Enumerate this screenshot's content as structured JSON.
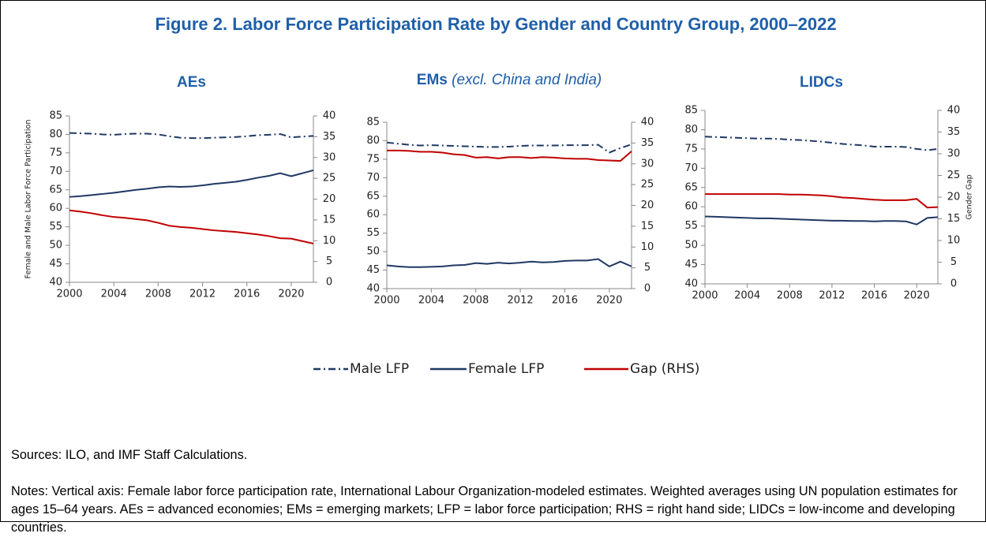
{
  "figure_title": "Figure 2. Labor Force Participation Rate by Gender and Country Group, 2000–2022",
  "chart_data": [
    {
      "type": "line",
      "title": "AEs",
      "ylabel": "Female and Male Labor Force Participation",
      "x": [
        2000,
        2001,
        2002,
        2003,
        2004,
        2005,
        2006,
        2007,
        2008,
        2009,
        2010,
        2011,
        2012,
        2013,
        2014,
        2015,
        2016,
        2017,
        2018,
        2019,
        2020,
        2021,
        2022
      ],
      "xlim": [
        2000,
        2022
      ],
      "xticks": [
        2000,
        2004,
        2008,
        2012,
        2016,
        2020
      ],
      "ylim": [
        40,
        85
      ],
      "yticks": [
        40,
        45,
        50,
        55,
        60,
        65,
        70,
        75,
        80,
        85
      ],
      "y2lim": [
        0,
        40
      ],
      "y2ticks": [
        0,
        5,
        10,
        15,
        20,
        25,
        30,
        35,
        40
      ],
      "series": [
        {
          "name": "Male LFP",
          "color": "#1f3864",
          "style": "dashdot",
          "values": [
            80.4,
            80.3,
            80.2,
            80.0,
            79.9,
            80.1,
            80.2,
            80.2,
            80.0,
            79.5,
            79.1,
            79.0,
            79.0,
            79.1,
            79.2,
            79.3,
            79.5,
            79.8,
            79.9,
            80.1,
            79.2,
            79.4,
            79.6
          ]
        },
        {
          "name": "Female LFP",
          "color": "#1f3864",
          "style": "solid",
          "values": [
            63.1,
            63.3,
            63.6,
            63.9,
            64.2,
            64.6,
            65.0,
            65.3,
            65.7,
            65.9,
            65.8,
            65.9,
            66.2,
            66.6,
            66.9,
            67.2,
            67.7,
            68.3,
            68.8,
            69.5,
            68.7,
            69.5,
            70.3
          ]
        },
        {
          "name": "Gap (RHS)",
          "color": "#c00000",
          "style": "solid",
          "axis": "y2",
          "values": [
            17.3,
            17.0,
            16.6,
            16.1,
            15.7,
            15.5,
            15.2,
            14.9,
            14.3,
            13.6,
            13.3,
            13.1,
            12.8,
            12.5,
            12.3,
            12.1,
            11.8,
            11.5,
            11.1,
            10.6,
            10.5,
            9.9,
            9.3
          ]
        }
      ]
    },
    {
      "type": "line",
      "title": "EMs",
      "subtitle": "(excl. China and India)",
      "x": [
        2000,
        2001,
        2002,
        2003,
        2004,
        2005,
        2006,
        2007,
        2008,
        2009,
        2010,
        2011,
        2012,
        2013,
        2014,
        2015,
        2016,
        2017,
        2018,
        2019,
        2020,
        2021,
        2022
      ],
      "xlim": [
        2000,
        2022
      ],
      "xticks": [
        2000,
        2004,
        2008,
        2012,
        2016,
        2020
      ],
      "ylim": [
        40,
        85
      ],
      "yticks": [
        40,
        45,
        50,
        55,
        60,
        65,
        70,
        75,
        80,
        85
      ],
      "y2lim": [
        0,
        40
      ],
      "y2ticks": [
        0,
        5,
        10,
        15,
        20,
        25,
        30,
        35,
        40
      ],
      "series": [
        {
          "color": "#1f3864",
          "style": "dashdot",
          "values": [
            79.5,
            79.2,
            78.9,
            78.7,
            78.8,
            78.7,
            78.6,
            78.5,
            78.4,
            78.3,
            78.3,
            78.4,
            78.6,
            78.7,
            78.7,
            78.7,
            78.8,
            78.8,
            78.8,
            78.9,
            76.8,
            78.0,
            79.0
          ]
        },
        {
          "color": "#1f3864",
          "style": "solid",
          "values": [
            46.3,
            46.0,
            45.8,
            45.8,
            45.9,
            46.0,
            46.3,
            46.4,
            46.9,
            46.7,
            47.0,
            46.8,
            47.0,
            47.3,
            47.1,
            47.2,
            47.5,
            47.6,
            47.6,
            48.0,
            46.0,
            47.3,
            46.0
          ]
        },
        {
          "color": "#c00000",
          "style": "solid",
          "axis": "y2",
          "values": [
            33.2,
            33.2,
            33.1,
            32.9,
            32.9,
            32.7,
            32.3,
            32.1,
            31.5,
            31.6,
            31.3,
            31.6,
            31.6,
            31.4,
            31.6,
            31.5,
            31.3,
            31.2,
            31.2,
            30.9,
            30.8,
            30.7,
            33.0
          ]
        }
      ]
    },
    {
      "type": "line",
      "title": "LIDCs",
      "y2label": "Gender Gap",
      "x": [
        2000,
        2001,
        2002,
        2003,
        2004,
        2005,
        2006,
        2007,
        2008,
        2009,
        2010,
        2011,
        2012,
        2013,
        2014,
        2015,
        2016,
        2017,
        2018,
        2019,
        2020,
        2021,
        2022
      ],
      "xlim": [
        2000,
        2022
      ],
      "xticks": [
        2000,
        2004,
        2008,
        2012,
        2016,
        2020
      ],
      "ylim": [
        40,
        85
      ],
      "yticks": [
        40,
        45,
        50,
        55,
        60,
        65,
        70,
        75,
        80,
        85
      ],
      "y2lim": [
        0,
        40
      ],
      "y2ticks": [
        0,
        5,
        10,
        15,
        20,
        25,
        30,
        35,
        40
      ],
      "series": [
        {
          "color": "#1f3864",
          "style": "dashdot",
          "values": [
            78.2,
            78.1,
            78.0,
            77.9,
            77.8,
            77.7,
            77.7,
            77.6,
            77.4,
            77.3,
            77.1,
            76.9,
            76.6,
            76.3,
            76.1,
            75.9,
            75.6,
            75.6,
            75.6,
            75.5,
            75.0,
            74.7,
            75.0
          ]
        },
        {
          "color": "#1f3864",
          "style": "solid",
          "values": [
            57.5,
            57.4,
            57.3,
            57.2,
            57.1,
            57.0,
            57.0,
            56.9,
            56.8,
            56.7,
            56.6,
            56.5,
            56.4,
            56.4,
            56.3,
            56.3,
            56.2,
            56.3,
            56.3,
            56.2,
            55.4,
            57.1,
            57.3
          ]
        },
        {
          "color": "#c00000",
          "style": "solid",
          "axis": "y2",
          "values": [
            20.7,
            20.7,
            20.7,
            20.7,
            20.7,
            20.7,
            20.7,
            20.7,
            20.6,
            20.6,
            20.5,
            20.4,
            20.2,
            19.9,
            19.8,
            19.6,
            19.4,
            19.3,
            19.3,
            19.3,
            19.6,
            17.6,
            17.7
          ]
        }
      ]
    }
  ],
  "sources": "Sources: ILO, and IMF Staff Calculations.",
  "notes": "Notes: Vertical axis: Female labor force participation rate, International Labour Organization-modeled estimates. Weighted averages using UN population estimates for ages 15–64 years. AEs = advanced economies; EMs = emerging markets; LFP = labor force participation; RHS = right hand side; LIDCs = low-income and developing countries."
}
